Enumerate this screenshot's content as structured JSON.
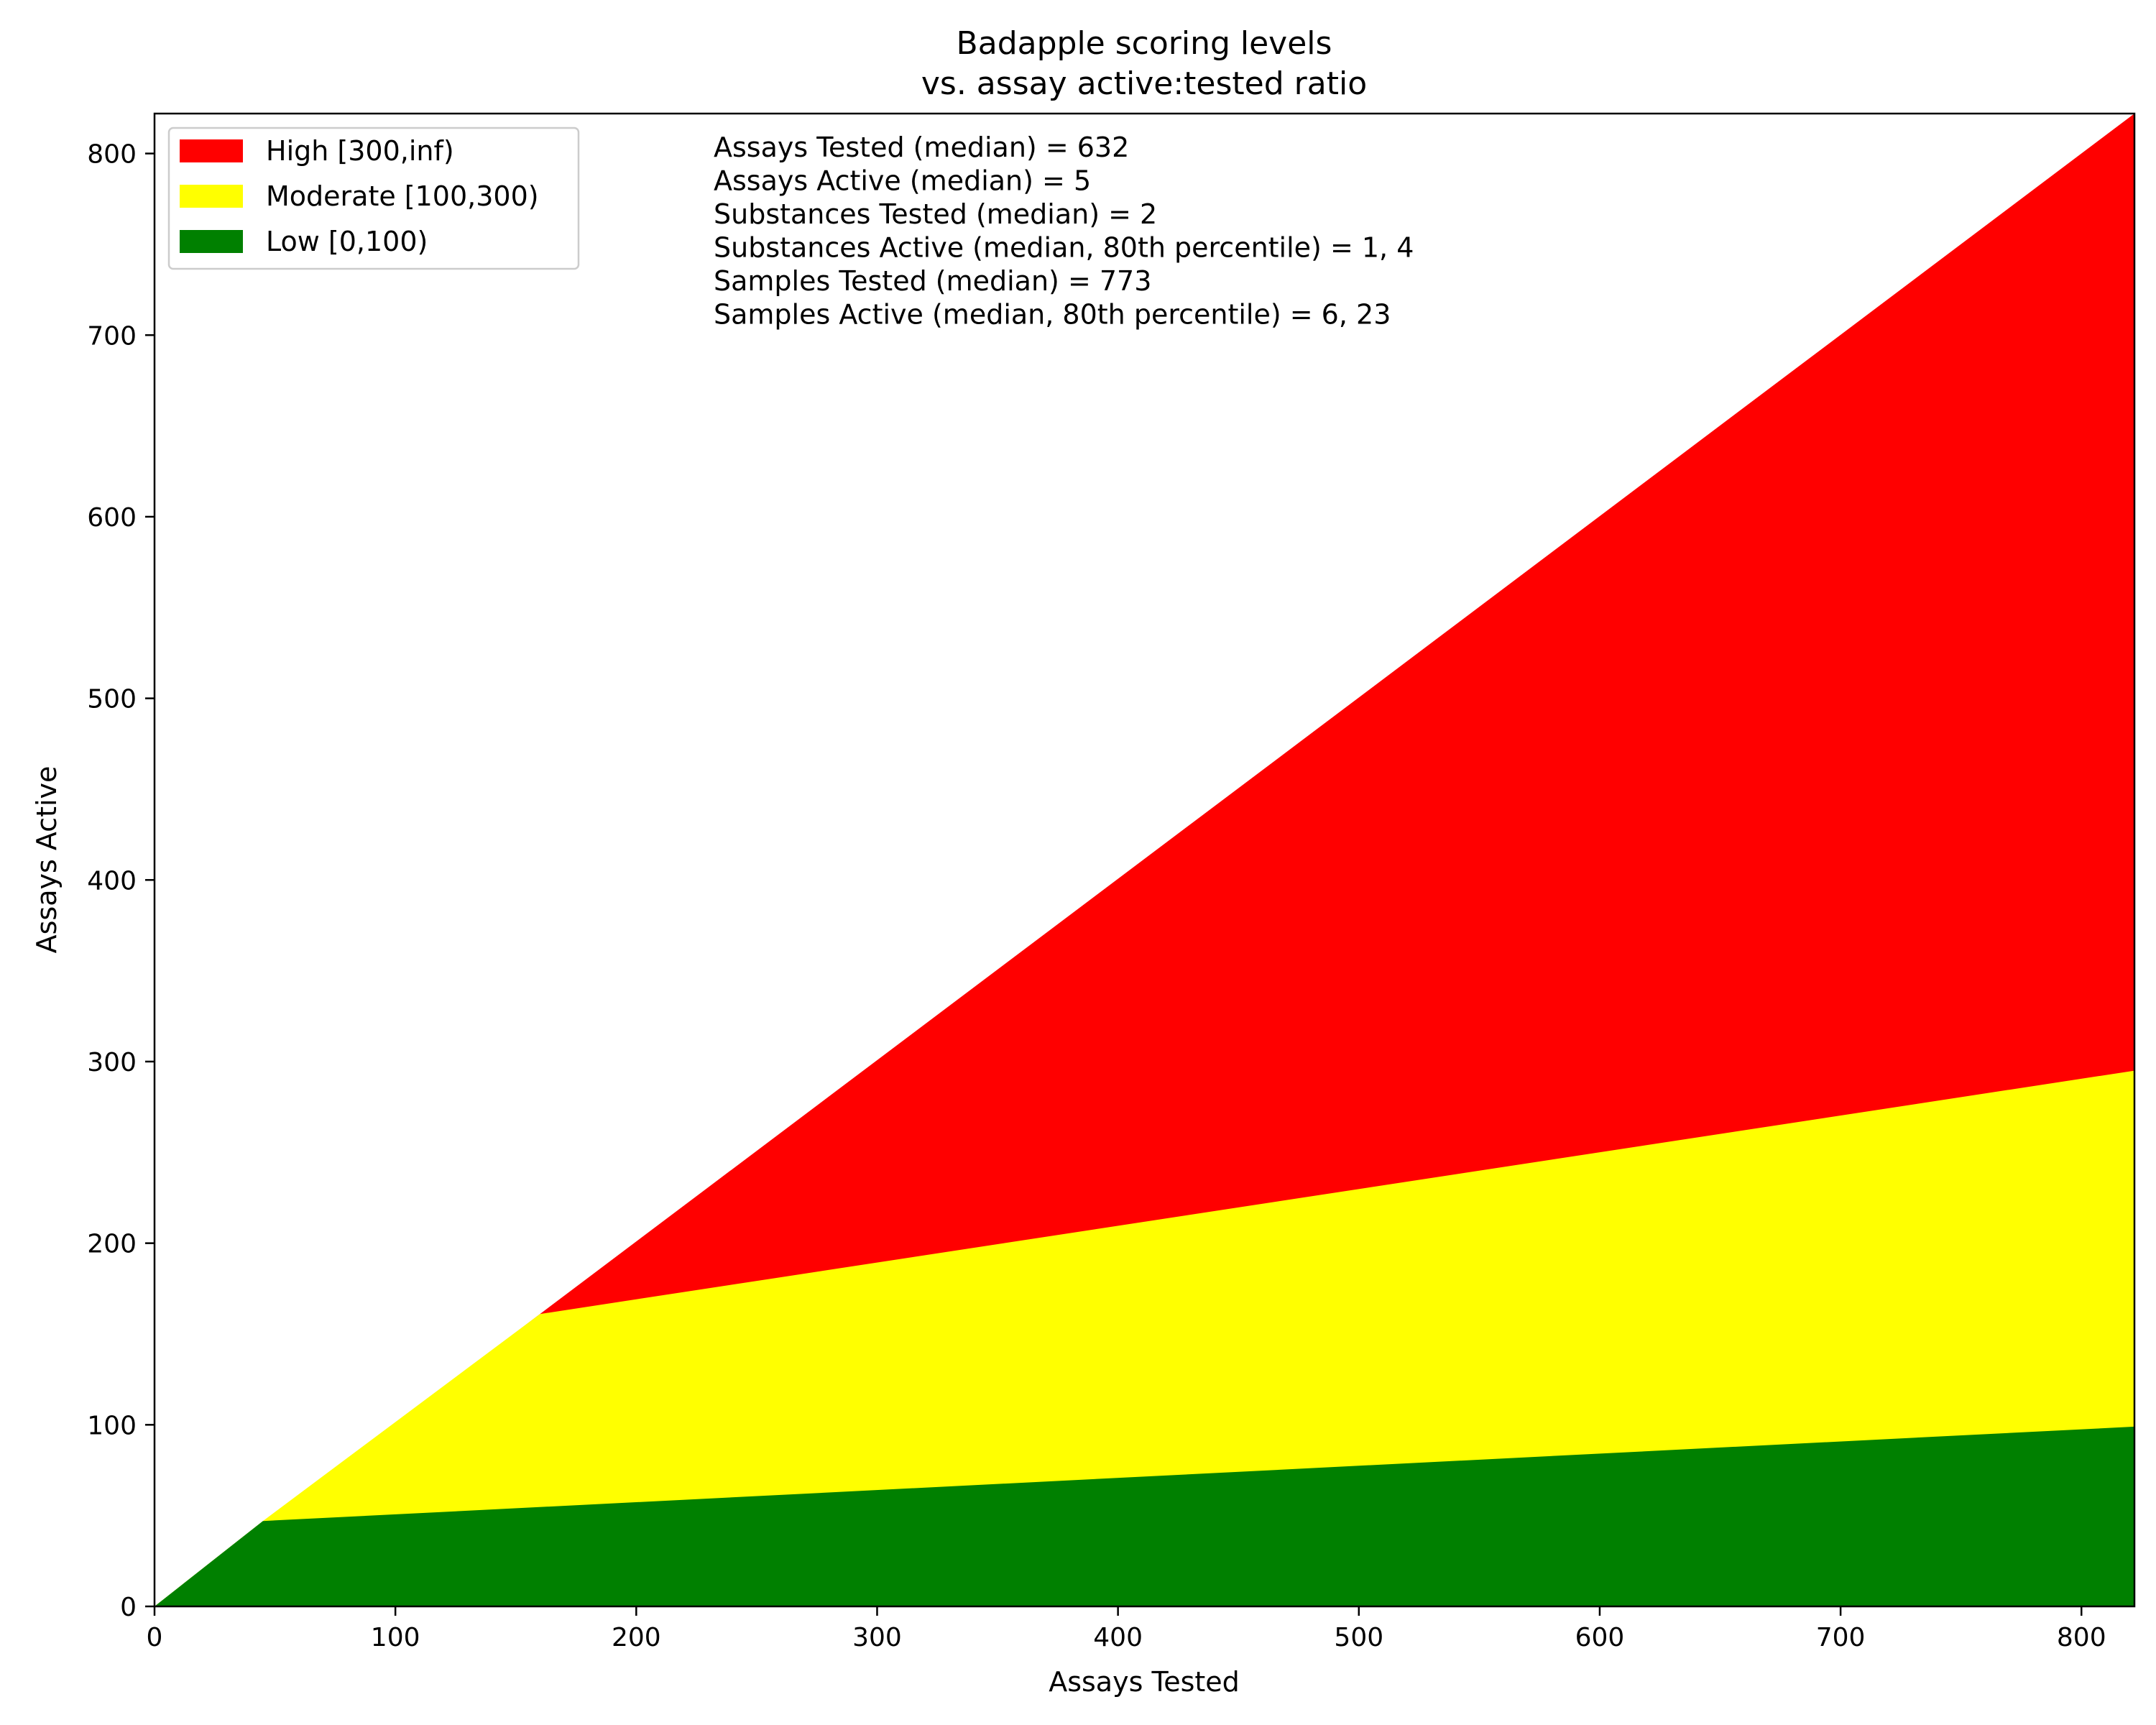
{
  "chart_data": {
    "type": "area",
    "title": "Badapple scoring levels",
    "subtitle": "vs. assay active:tested ratio",
    "xlabel": "Assays Tested",
    "ylabel": "Assays Active",
    "xlim": [
      0,
      822
    ],
    "ylim": [
      0,
      822
    ],
    "xticks": [
      0,
      100,
      200,
      300,
      400,
      500,
      600,
      700,
      800
    ],
    "yticks": [
      0,
      100,
      200,
      300,
      400,
      500,
      600,
      700,
      800
    ],
    "grid": false,
    "legend_position": "top-left",
    "series": [
      {
        "name": "Low [0,100)",
        "color": "#008000",
        "x": [
          0,
          45,
          822
        ],
        "y": [
          0,
          47,
          99
        ]
      },
      {
        "name": "Moderate [100,300)",
        "color": "#ffff00",
        "x": [
          0,
          45,
          160,
          822
        ],
        "y": [
          0,
          47,
          161,
          295
        ]
      },
      {
        "name": "High [300,inf)",
        "color": "#ff0000",
        "x": [
          0,
          160,
          822
        ],
        "y": [
          0,
          161,
          822
        ]
      }
    ],
    "legend_order": [
      "High [300,inf)",
      "Moderate [100,300)",
      "Low [0,100)"
    ],
    "annotations": [
      "Assays Tested (median) = 632",
      "Assays Active (median) = 5",
      "Substances Tested (median) = 2",
      "Substances Active (median, 80th percentile) = 1, 4",
      "Samples Tested (median) = 773",
      "Samples Active (median, 80th percentile) = 6, 23"
    ]
  }
}
